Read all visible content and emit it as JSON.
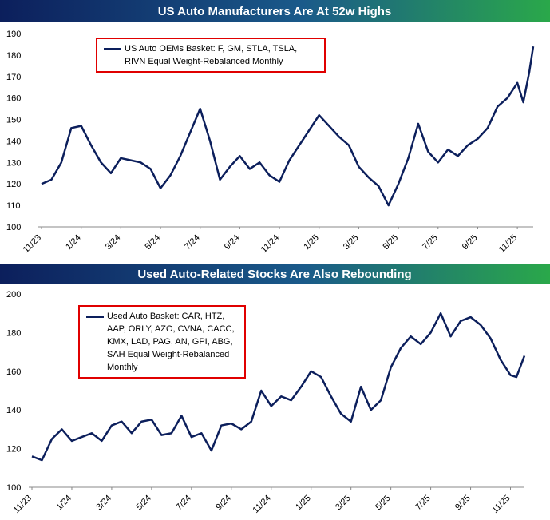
{
  "chart_data": [
    {
      "type": "line",
      "title": "US Auto Manufacturers Are At 52w Highs",
      "xlim": [
        0,
        24.8
      ],
      "xticks": [
        {
          "value": 0,
          "label": "11/23"
        },
        {
          "value": 2,
          "label": "1/24"
        },
        {
          "value": 4,
          "label": "3/24"
        },
        {
          "value": 6,
          "label": "5/24"
        },
        {
          "value": 8,
          "label": "7/24"
        },
        {
          "value": 10,
          "label": "9/24"
        },
        {
          "value": 12,
          "label": "11/24"
        },
        {
          "value": 14,
          "label": "1/25"
        },
        {
          "value": 16,
          "label": "3/25"
        },
        {
          "value": 18,
          "label": "5/25"
        },
        {
          "value": 20,
          "label": "7/25"
        },
        {
          "value": 22,
          "label": "9/25"
        },
        {
          "value": 24,
          "label": "11/25"
        }
      ],
      "ylim": [
        100,
        190
      ],
      "yticks": [
        100,
        110,
        120,
        130,
        140,
        150,
        160,
        170,
        180,
        190
      ],
      "x": [
        0,
        0.5,
        1,
        1.5,
        2,
        2.5,
        3,
        3.5,
        4,
        4.5,
        5,
        5.5,
        6,
        6.5,
        7,
        7.5,
        8,
        8.5,
        9,
        9.5,
        10,
        10.5,
        11,
        11.5,
        12,
        12.5,
        13,
        13.5,
        14,
        14.5,
        15,
        15.5,
        16,
        16.5,
        17,
        17.5,
        18,
        18.5,
        19,
        19.5,
        20,
        20.5,
        21,
        21.5,
        22,
        22.5,
        23,
        23.5,
        24,
        24.3,
        24.6,
        24.8
      ],
      "series": [
        {
          "name": "US Auto OEMs Basket: F, GM, STLA, TSLA, RIVN Equal Weight-Rebalanced Monthly",
          "color": "#0c1f5c",
          "values": [
            120,
            122,
            130,
            146,
            147,
            138,
            130,
            125,
            132,
            131,
            130,
            127,
            118,
            124,
            133,
            144,
            155,
            140,
            122,
            128,
            133,
            127,
            130,
            124,
            121,
            131,
            138,
            145,
            152,
            147,
            142,
            138,
            128,
            123,
            119,
            110,
            120,
            132,
            148,
            135,
            130,
            136,
            133,
            138,
            141,
            146,
            156,
            160,
            167,
            158,
            172,
            184
          ]
        }
      ]
    },
    {
      "type": "line",
      "title": "Used Auto-Related Stocks Are Also Rebounding",
      "xlim": [
        0,
        24.7
      ],
      "xticks": [
        {
          "value": 0,
          "label": "11/23"
        },
        {
          "value": 2,
          "label": "1/24"
        },
        {
          "value": 4,
          "label": "3/24"
        },
        {
          "value": 6,
          "label": "5/24"
        },
        {
          "value": 8,
          "label": "7/24"
        },
        {
          "value": 10,
          "label": "9/24"
        },
        {
          "value": 12,
          "label": "11/24"
        },
        {
          "value": 14,
          "label": "1/25"
        },
        {
          "value": 16,
          "label": "3/25"
        },
        {
          "value": 18,
          "label": "5/25"
        },
        {
          "value": 20,
          "label": "7/25"
        },
        {
          "value": 22,
          "label": "9/25"
        },
        {
          "value": 24,
          "label": "11/25"
        }
      ],
      "ylim": [
        100,
        200
      ],
      "yticks": [
        100,
        120,
        140,
        160,
        180,
        200
      ],
      "x": [
        0,
        0.5,
        1,
        1.5,
        2,
        2.5,
        3,
        3.5,
        4,
        4.5,
        5,
        5.5,
        6,
        6.5,
        7,
        7.5,
        8,
        8.5,
        9,
        9.5,
        10,
        10.5,
        11,
        11.5,
        12,
        12.5,
        13,
        13.5,
        14,
        14.5,
        15,
        15.5,
        16,
        16.5,
        17,
        17.5,
        18,
        18.5,
        19,
        19.5,
        20,
        20.5,
        21,
        21.5,
        22,
        22.5,
        23,
        23.5,
        24,
        24.3,
        24.7
      ],
      "series": [
        {
          "name": "Used Auto Basket: CAR, HTZ, AAP, ORLY, AZO, CVNA, CACC, KMX, LAD, PAG, AN, GPI, ABG, SAH Equal Weight-Rebalanced Monthly",
          "color": "#0c1f5c",
          "values": [
            116,
            114,
            125,
            130,
            124,
            126,
            128,
            124,
            132,
            134,
            128,
            134,
            135,
            127,
            128,
            137,
            126,
            128,
            119,
            132,
            133,
            130,
            134,
            150,
            142,
            147,
            145,
            152,
            160,
            157,
            147,
            138,
            134,
            152,
            140,
            145,
            162,
            172,
            178,
            174,
            180,
            190,
            178,
            186,
            188,
            184,
            177,
            166,
            158,
            157,
            168
          ]
        }
      ]
    }
  ]
}
